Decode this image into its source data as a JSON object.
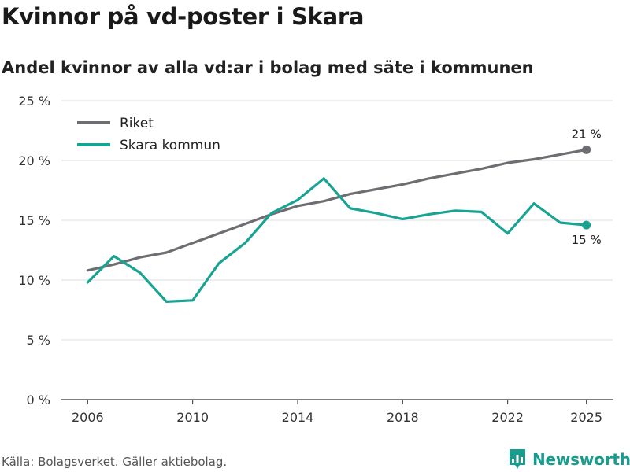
{
  "title": "Kvinnor på vd-poster i Skara",
  "subtitle": "Andel kvinnor av alla vd:ar i bolag med säte i kommunen",
  "source": "Källa: Bolagsverket. Gäller aktiebolag.",
  "brand": {
    "name": "Newsworthy",
    "icon": "bar-chart-icon",
    "color": "#189c8d"
  },
  "chart_data": {
    "type": "line",
    "x": [
      2006,
      2007,
      2008,
      2009,
      2010,
      2011,
      2012,
      2013,
      2014,
      2015,
      2016,
      2017,
      2018,
      2019,
      2020,
      2021,
      2022,
      2023,
      2024,
      2025
    ],
    "x_ticks": [
      2006,
      2010,
      2014,
      2018,
      2022,
      2025
    ],
    "y_ticks": [
      0,
      5,
      10,
      15,
      20,
      25
    ],
    "y_tick_labels": [
      "0 %",
      "5 %",
      "10 %",
      "15 %",
      "20 %",
      "25 %"
    ],
    "ylim": [
      0,
      25
    ],
    "grid": "horizontal",
    "legend_placement": "top-left",
    "series": [
      {
        "name": "Riket",
        "color": "#6e6d72",
        "values": [
          10.8,
          11.3,
          11.9,
          12.3,
          13.1,
          13.9,
          14.7,
          15.5,
          16.2,
          16.6,
          17.2,
          17.6,
          18.0,
          18.5,
          18.9,
          19.3,
          19.8,
          20.1,
          20.5,
          20.9
        ],
        "end_label": "21 %"
      },
      {
        "name": "Skara kommun",
        "color": "#19a393",
        "values": [
          9.8,
          12.0,
          10.6,
          8.2,
          8.3,
          11.4,
          13.1,
          15.6,
          16.7,
          18.5,
          16.0,
          15.6,
          15.1,
          15.5,
          15.8,
          15.7,
          13.9,
          16.4,
          14.8,
          14.6
        ],
        "end_label": "15 %"
      }
    ]
  }
}
